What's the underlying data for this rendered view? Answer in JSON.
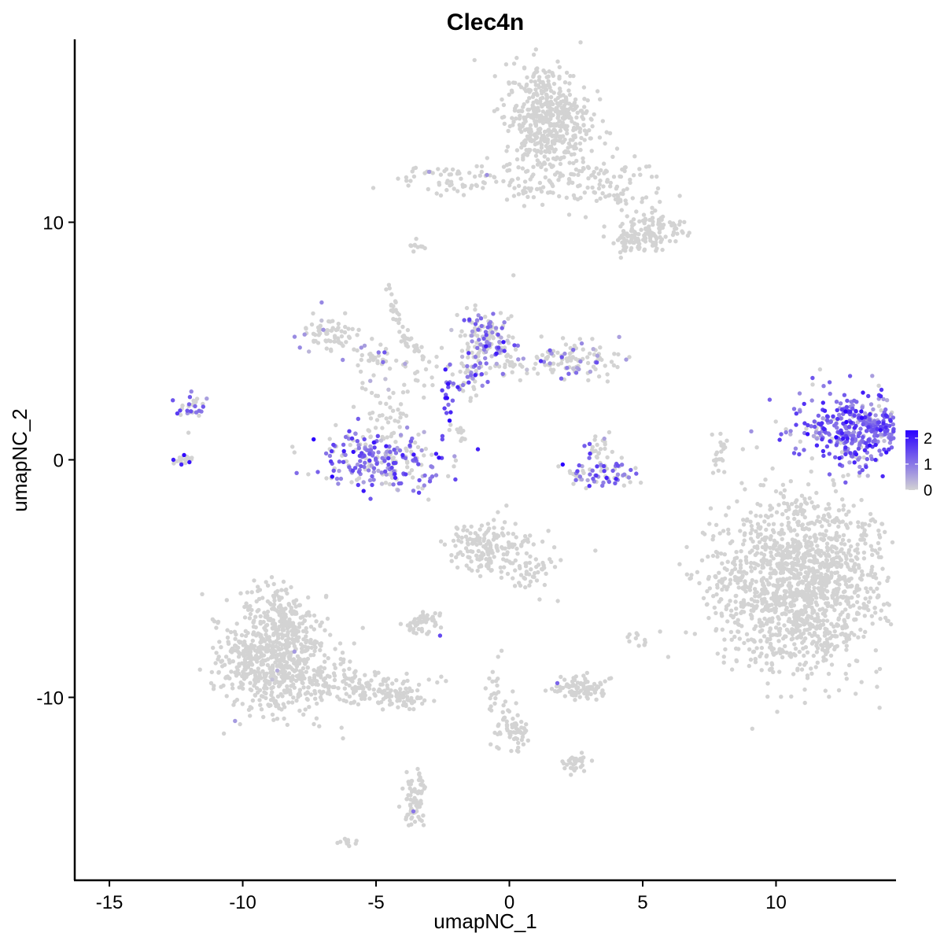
{
  "chart_data": {
    "type": "scatter",
    "title": "Clec4n",
    "xlabel": "umapNC_1",
    "ylabel": "umapNC_2",
    "xlim": [
      -16.3,
      14.5
    ],
    "ylim": [
      -17.7,
      17.7
    ],
    "x_ticks": [
      -15,
      -10,
      -5,
      0,
      5,
      10
    ],
    "x_tick_labels": [
      "-15",
      "-10",
      "-5",
      "0",
      "5",
      "10"
    ],
    "y_ticks": [
      -10,
      0,
      10
    ],
    "y_tick_labels": [
      "-10",
      "0",
      "10"
    ],
    "grid": false,
    "legend_position": "right",
    "color_scale": {
      "low": "#d3d3d3",
      "high": "#2a00ff",
      "min": 0,
      "max": 2.3
    },
    "legend_ticks": [
      0,
      1,
      2
    ],
    "legend_tick_labels": [
      "0",
      "1",
      "2"
    ],
    "clusters": [
      {
        "cx": 13.3,
        "cy": 1.3,
        "sx": 1.3,
        "sy": 0.75,
        "n": 460,
        "expr_mean": 1.2,
        "expr_frac": 0.9
      },
      {
        "cx": -11.9,
        "cy": 2.2,
        "sx": 0.3,
        "sy": 0.4,
        "n": 22,
        "expr_mean": 0.9,
        "expr_frac": 0.6
      },
      {
        "cx": 1.4,
        "cy": 14.3,
        "sx": 0.8,
        "sy": 1.2,
        "n": 520,
        "expr_mean": 0.0,
        "expr_frac": 0.0
      },
      {
        "cx": 3.3,
        "cy": 11.6,
        "sx": 1.3,
        "sy": 0.6,
        "n": 110,
        "expr_mean": 0.0,
        "expr_frac": 0.0
      },
      {
        "cx": -1.9,
        "cy": 11.8,
        "sx": 1.3,
        "sy": 0.3,
        "n": 70,
        "expr_mean": 0.6,
        "expr_frac": 0.05
      },
      {
        "cx": 5.4,
        "cy": 9.7,
        "sx": 0.6,
        "sy": 0.45,
        "n": 110,
        "expr_mean": 0.0,
        "expr_frac": 0.0
      },
      {
        "cx": 4.6,
        "cy": 9.1,
        "sx": 0.35,
        "sy": 0.25,
        "n": 40,
        "expr_mean": 0.0,
        "expr_frac": 0.0
      },
      {
        "cx": -6.7,
        "cy": 5.3,
        "sx": 0.6,
        "sy": 0.35,
        "n": 70,
        "expr_mean": 0.6,
        "expr_frac": 0.05
      },
      {
        "cx": -4.4,
        "cy": 4.0,
        "sx": 0.8,
        "sy": 0.6,
        "n": 40,
        "expr_mean": 0.7,
        "expr_frac": 0.2
      },
      {
        "cx": -4.8,
        "cy": 0.0,
        "sx": 1.2,
        "sy": 0.6,
        "n": 250,
        "expr_mean": 1.1,
        "expr_frac": 0.65
      },
      {
        "cx": -4.5,
        "cy": 1.8,
        "sx": 0.55,
        "sy": 0.6,
        "n": 40,
        "expr_mean": 0.0,
        "expr_frac": 0.0
      },
      {
        "cx": -0.9,
        "cy": 5.2,
        "sx": 0.55,
        "sy": 0.6,
        "n": 130,
        "expr_mean": 0.9,
        "expr_frac": 0.4
      },
      {
        "cx": -1.5,
        "cy": 3.7,
        "sx": 0.5,
        "sy": 0.6,
        "n": 60,
        "expr_mean": 1.0,
        "expr_frac": 0.4
      },
      {
        "cx": 1.8,
        "cy": 4.2,
        "sx": 1.2,
        "sy": 0.4,
        "n": 130,
        "expr_mean": 0.7,
        "expr_frac": 0.25
      },
      {
        "cx": -2.3,
        "cy": 2.8,
        "sx": 0.1,
        "sy": 0.5,
        "n": 12,
        "expr_mean": 1.6,
        "expr_frac": 1.0
      },
      {
        "cx": 3.6,
        "cy": -0.6,
        "sx": 0.6,
        "sy": 0.35,
        "n": 60,
        "expr_mean": 1.1,
        "expr_frac": 0.55
      },
      {
        "cx": 3.3,
        "cy": 0.6,
        "sx": 0.25,
        "sy": 0.4,
        "n": 25,
        "expr_mean": 1.0,
        "expr_frac": 0.3
      },
      {
        "cx": 10.9,
        "cy": -5.2,
        "sx": 1.6,
        "sy": 1.8,
        "n": 1500,
        "expr_mean": 0.0,
        "expr_frac": 0.0
      },
      {
        "cx": -0.9,
        "cy": -3.6,
        "sx": 0.7,
        "sy": 0.6,
        "n": 160,
        "expr_mean": 0.0,
        "expr_frac": 0.0
      },
      {
        "cx": 0.9,
        "cy": -4.6,
        "sx": 0.45,
        "sy": 0.6,
        "n": 50,
        "expr_mean": 0.0,
        "expr_frac": 0.0
      },
      {
        "cx": -8.8,
        "cy": -8.4,
        "sx": 1.0,
        "sy": 1.1,
        "n": 700,
        "expr_mean": 0.6,
        "expr_frac": 0.01
      },
      {
        "cx": -8.7,
        "cy": -6.3,
        "sx": 0.5,
        "sy": 0.6,
        "n": 70,
        "expr_mean": 0.0,
        "expr_frac": 0.0
      },
      {
        "cx": -5.6,
        "cy": -9.6,
        "sx": 1.2,
        "sy": 0.35,
        "n": 160,
        "expr_mean": 0.0,
        "expr_frac": 0.0
      },
      {
        "cx": -4.0,
        "cy": -10.1,
        "sx": 0.4,
        "sy": 0.2,
        "n": 40,
        "expr_mean": 0.0,
        "expr_frac": 0.0
      },
      {
        "cx": -3.2,
        "cy": -6.9,
        "sx": 0.3,
        "sy": 0.2,
        "n": 50,
        "expr_mean": 0.0,
        "expr_frac": 0.0
      },
      {
        "cx": 2.6,
        "cy": -9.6,
        "sx": 0.5,
        "sy": 0.25,
        "n": 90,
        "expr_mean": 0.0,
        "expr_frac": 0.0
      },
      {
        "cx": 0.2,
        "cy": -11.4,
        "sx": 0.3,
        "sy": 0.5,
        "n": 60,
        "expr_mean": 0.0,
        "expr_frac": 0.0
      },
      {
        "cx": -0.5,
        "cy": -9.8,
        "sx": 0.2,
        "sy": 0.8,
        "n": 25,
        "expr_mean": 0.0,
        "expr_frac": 0.0
      },
      {
        "cx": 2.5,
        "cy": -12.8,
        "sx": 0.3,
        "sy": 0.25,
        "n": 30,
        "expr_mean": 0.0,
        "expr_frac": 0.0
      },
      {
        "cx": -3.6,
        "cy": -14.4,
        "sx": 0.2,
        "sy": 0.5,
        "n": 60,
        "expr_mean": 0.0,
        "expr_frac": 0.0
      },
      {
        "cx": -6.1,
        "cy": -16.1,
        "sx": 0.2,
        "sy": 0.1,
        "n": 10,
        "expr_mean": 0.0,
        "expr_frac": 0.0
      },
      {
        "cx": 4.9,
        "cy": -7.5,
        "sx": 0.3,
        "sy": 0.2,
        "n": 12,
        "expr_mean": 0.0,
        "expr_frac": 0.0
      },
      {
        "cx": 7.8,
        "cy": 0.1,
        "sx": 0.12,
        "sy": 0.35,
        "n": 14,
        "expr_mean": 0.0,
        "expr_frac": 0.0
      },
      {
        "cx": -3.4,
        "cy": 9.0,
        "sx": 0.2,
        "sy": 0.12,
        "n": 12,
        "expr_mean": 0.0,
        "expr_frac": 0.0
      }
    ],
    "strands": [
      {
        "x0": -4.5,
        "y0": 7.3,
        "x1": -3.9,
        "y1": 4.8,
        "n": 30
      },
      {
        "x0": -3.9,
        "y0": 5.3,
        "x1": -3.1,
        "y1": 4.2,
        "n": 20
      },
      {
        "x0": -2.2,
        "y0": 1.5,
        "x1": -1.6,
        "y1": 0.8,
        "n": 15
      },
      {
        "x0": -11.6,
        "y0": 2.7,
        "x1": -12.3,
        "y1": 1.9,
        "n": 10
      },
      {
        "x0": -12.5,
        "y0": -0.1,
        "x1": -11.8,
        "y1": 0.1,
        "n": 14
      },
      {
        "x0": 1.9,
        "y0": -0.2,
        "x1": 2.8,
        "y1": -0.8,
        "n": 10
      },
      {
        "x0": -5.8,
        "y0": 4.7,
        "x1": -4.7,
        "y1": 4.1,
        "n": 14
      },
      {
        "x0": -0.2,
        "y0": 11.0,
        "x1": 1.6,
        "y1": 11.6,
        "n": 14
      },
      {
        "x0": -3.5,
        "y0": -12.8,
        "x1": -3.2,
        "y1": -14.0,
        "n": 10
      },
      {
        "x0": 7.8,
        "y0": -0.2,
        "x1": 8.1,
        "y1": 0.7,
        "n": 8
      }
    ],
    "highlights": [
      {
        "x": -12.2,
        "y": 0.2,
        "v": 2.2
      },
      {
        "x": -12.0,
        "y": -0.1,
        "v": 2.1
      },
      {
        "x": -12.6,
        "y": 0.0,
        "v": 2.0
      },
      {
        "x": -12.3,
        "y": -0.2,
        "v": 1.9
      },
      {
        "x": -2.3,
        "y": 3.2,
        "v": 2.1
      },
      {
        "x": -2.4,
        "y": 2.6,
        "v": 2.0
      },
      {
        "x": -2.2,
        "y": 2.0,
        "v": 1.9
      },
      {
        "x": -2.4,
        "y": 3.8,
        "v": 2.0
      },
      {
        "x": 2.0,
        "y": -0.2,
        "v": 2.3
      },
      {
        "x": 3.0,
        "y": -1.1,
        "v": 1.8
      },
      {
        "x": -4.0,
        "y": 0.2,
        "v": 1.9
      },
      {
        "x": -4.3,
        "y": -0.6,
        "v": 1.8
      },
      {
        "x": -5.9,
        "y": 0.9,
        "v": 1.7
      },
      {
        "x": -2.6,
        "y": -7.4,
        "v": 1.5
      },
      {
        "x": 1.8,
        "y": -9.4,
        "v": 1.2
      },
      {
        "x": -3.6,
        "y": -14.8,
        "v": 1.0
      },
      {
        "x": 4.0,
        "y": -0.8,
        "v": 1.9
      },
      {
        "x": -1.5,
        "y": 5.9,
        "v": 1.6
      }
    ]
  }
}
